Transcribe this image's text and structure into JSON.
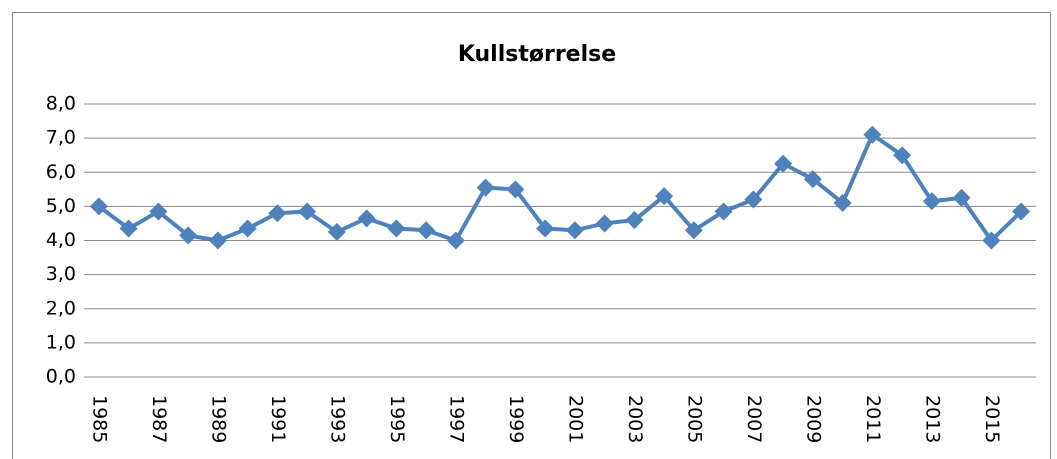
{
  "chart_data": {
    "type": "line",
    "title": "Kullstørrelse",
    "categories": [
      "1985",
      null,
      "1987",
      null,
      "1989",
      null,
      "1991",
      null,
      "1993",
      null,
      "1995",
      null,
      "1997",
      null,
      "1999",
      null,
      "2001",
      null,
      "2003",
      null,
      "2005",
      null,
      "2007",
      null,
      "2009",
      null,
      "2011",
      null,
      "2013",
      null,
      "2015",
      null
    ],
    "values": [
      5.0,
      4.35,
      4.85,
      4.15,
      4.0,
      4.35,
      4.8,
      4.85,
      4.25,
      4.65,
      4.35,
      4.3,
      4.0,
      5.55,
      5.5,
      4.35,
      4.3,
      4.5,
      4.6,
      5.3,
      4.3,
      4.85,
      5.2,
      6.25,
      5.8,
      5.1,
      7.1,
      6.5,
      5.15,
      5.25,
      4.0,
      4.85
    ],
    "color": "#4f81bd",
    "ylim": [
      0,
      8
    ],
    "yticks": [
      {
        "value": 0,
        "label": "0,0"
      },
      {
        "value": 1,
        "label": "1,0"
      },
      {
        "value": 2,
        "label": "2,0"
      },
      {
        "value": 3,
        "label": "3,0"
      },
      {
        "value": 4,
        "label": "4,0"
      },
      {
        "value": 5,
        "label": "5,0"
      },
      {
        "value": 6,
        "label": "6,0"
      },
      {
        "value": 7,
        "label": "7,0"
      },
      {
        "value": 8,
        "label": "8,0"
      }
    ],
    "grid": true
  }
}
